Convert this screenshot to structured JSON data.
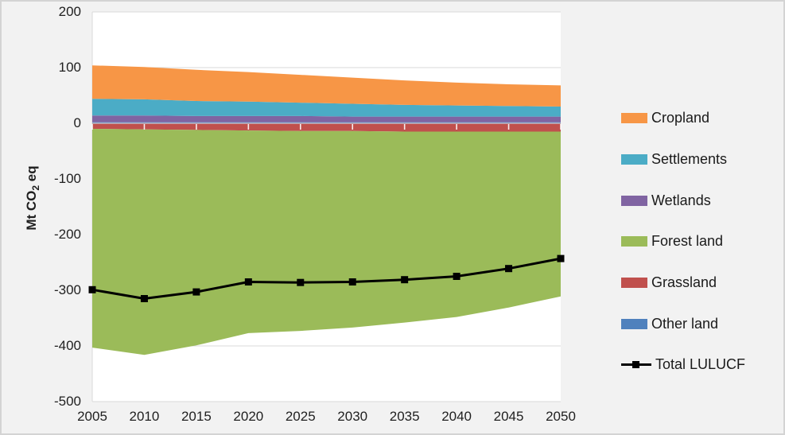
{
  "figure": {
    "background": "#F2F2F2",
    "plot_background": "#FFFFFF",
    "border_color": "#D4D4D4"
  },
  "axis": {
    "y_title_pre": "Mt CO",
    "y_title_sub": "2",
    "y_title_post": " eq",
    "y_ticks": [
      200,
      100,
      0,
      -100,
      -200,
      -300,
      -400,
      -500
    ],
    "x_ticks": [
      2005,
      2010,
      2015,
      2020,
      2025,
      2030,
      2035,
      2040,
      2045,
      2050
    ],
    "text_color": "#1F1F1F",
    "gridline_color": "#D9D9D9",
    "zero_line_color": "#C2CCD8",
    "zero_tick_color": "#FFFFFF"
  },
  "chart_data": {
    "type": "area",
    "stacked": true,
    "title": "",
    "xlabel": "",
    "ylabel": "Mt CO2 eq",
    "x": [
      2005,
      2010,
      2015,
      2020,
      2025,
      2030,
      2035,
      2040,
      2045,
      2050
    ],
    "ylim": [
      -500,
      200
    ],
    "grid": true,
    "legend_position": "right",
    "series": [
      {
        "name": "Cropland",
        "type": "area",
        "color": "#F79646",
        "values": [
          60,
          58,
          56,
          53,
          50,
          47,
          44,
          41,
          39,
          38
        ]
      },
      {
        "name": "Settlements",
        "type": "area",
        "color": "#4BACC6",
        "values": [
          30,
          29,
          27,
          26,
          24,
          23,
          21,
          20,
          19,
          18
        ]
      },
      {
        "name": "Wetlands",
        "type": "area",
        "color": "#8064A2",
        "values": [
          12,
          12,
          11,
          11,
          11,
          10,
          10,
          10,
          10,
          10
        ]
      },
      {
        "name": "Forest land",
        "type": "area",
        "color": "#9BBB59",
        "values": [
          -393,
          -405,
          -387,
          -364,
          -359,
          -353,
          -343,
          -333,
          -316,
          -296
        ]
      },
      {
        "name": "Grassland",
        "type": "area",
        "color": "#C0504D",
        "values": [
          -10,
          -11,
          -12,
          -13,
          -14,
          -14,
          -15,
          -15,
          -15,
          -15
        ]
      },
      {
        "name": "Other land",
        "type": "area",
        "color": "#4F81BD",
        "values": [
          2,
          2,
          2,
          2,
          2,
          2,
          2,
          2,
          2,
          2
        ]
      },
      {
        "name": "Total LULUCF",
        "type": "line",
        "color": "#000000",
        "marker": "square",
        "values": [
          -299,
          -315,
          -303,
          -285,
          -286,
          -285,
          -281,
          -275,
          -261,
          -243
        ]
      }
    ],
    "stack_order_positive": [
      "Other land",
      "Wetlands",
      "Settlements",
      "Cropland"
    ],
    "stack_order_negative": [
      "Grassland",
      "Forest land"
    ]
  },
  "legend": {
    "items": [
      {
        "label": "Cropland",
        "color": "#F79646",
        "glyph": "swatch"
      },
      {
        "label": "Settlements",
        "color": "#4BACC6",
        "glyph": "swatch"
      },
      {
        "label": "Wetlands",
        "color": "#8064A2",
        "glyph": "swatch"
      },
      {
        "label": "Forest land",
        "color": "#9BBB59",
        "glyph": "swatch"
      },
      {
        "label": "Grassland",
        "color": "#C0504D",
        "glyph": "swatch"
      },
      {
        "label": "Other land",
        "color": "#4F81BD",
        "glyph": "swatch"
      },
      {
        "label": "Total LULUCF",
        "color": "#000000",
        "glyph": "line-marker"
      }
    ]
  }
}
